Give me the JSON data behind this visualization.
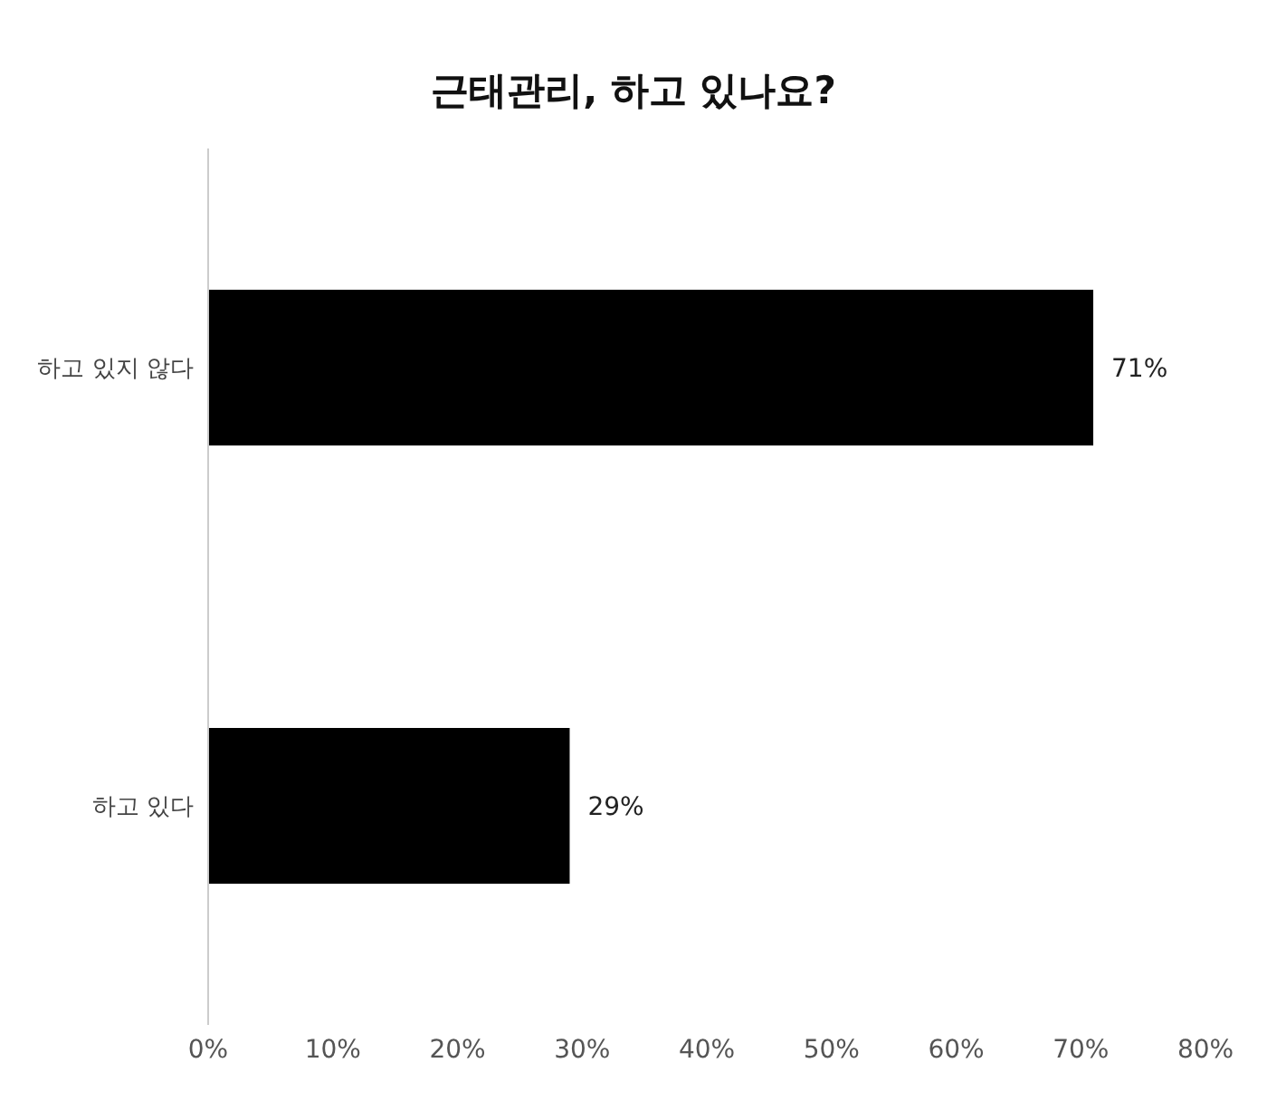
{
  "chart_data": {
    "type": "bar",
    "orientation": "horizontal",
    "title": "근태관리, 하고 있나요?",
    "categories": [
      "하고 있지 않다",
      "하고 있다"
    ],
    "values": [
      71,
      29
    ],
    "color": "#000000",
    "value_labels": [
      "71%",
      "29%"
    ],
    "xlim": [
      0,
      80
    ],
    "xticks": [
      {
        "value": 0,
        "label": "0%"
      },
      {
        "value": 10,
        "label": "10%"
      },
      {
        "value": 20,
        "label": "20%"
      },
      {
        "value": 30,
        "label": "30%"
      },
      {
        "value": 40,
        "label": "40%"
      },
      {
        "value": 50,
        "label": "50%"
      },
      {
        "value": 60,
        "label": "60%"
      },
      {
        "value": 70,
        "label": "70%"
      },
      {
        "value": 80,
        "label": "80%"
      }
    ],
    "grid": false,
    "legend": false
  }
}
